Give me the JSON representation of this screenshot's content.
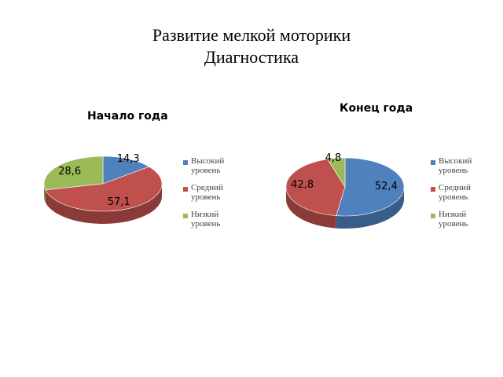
{
  "slide": {
    "title_line1": "Развитие мелкой моторики",
    "title_line2": "Диагностика"
  },
  "chart_data": [
    {
      "type": "pie",
      "title": "Начало года",
      "categories": [
        "Высокий уровень",
        "Средний уровень",
        "Низкий уровень"
      ],
      "values": [
        14.3,
        57.1,
        28.6
      ],
      "value_labels": [
        "14,3",
        "57,1",
        "28,6"
      ],
      "colors": [
        "#4F81BD",
        "#C0504D",
        "#9BBB59"
      ],
      "legend": "right"
    },
    {
      "type": "pie",
      "title": "Конец года",
      "categories": [
        "Высокий уровень",
        "Средний уровень",
        "Низкий уровень"
      ],
      "values": [
        52.4,
        42.8,
        4.8
      ],
      "value_labels": [
        "52,4",
        "42,8",
        "4,8"
      ],
      "colors": [
        "#4F81BD",
        "#C0504D",
        "#9BBB59"
      ],
      "legend": "right"
    }
  ]
}
